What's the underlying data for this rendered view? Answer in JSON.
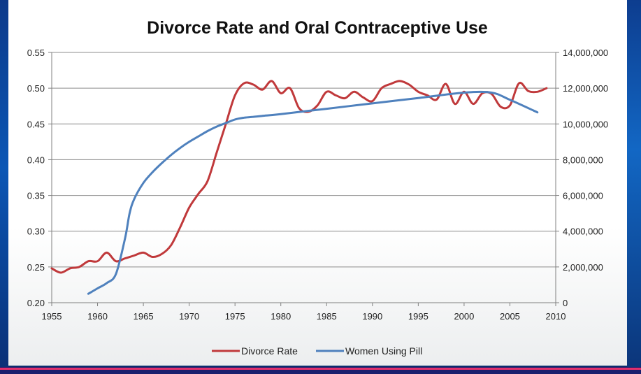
{
  "colors": {
    "divorce": "#c0393b",
    "pill": "#4f81bd",
    "grid": "#8c8c8c",
    "axis": "#808080",
    "frame_accent": "#e0306c"
  },
  "chart_data": {
    "type": "line",
    "title": "Divorce Rate and Oral Contraceptive Use",
    "xlim": [
      1955,
      2010
    ],
    "x_ticks": [
      1955,
      1960,
      1965,
      1970,
      1975,
      1980,
      1985,
      1990,
      1995,
      2000,
      2005,
      2010
    ],
    "x_tick_labels": [
      "1955",
      "1960",
      "1965",
      "1970",
      "1975",
      "1980",
      "1985",
      "1990",
      "1995",
      "2000",
      "2005",
      "2010"
    ],
    "y_left": {
      "lim": [
        0.2,
        0.55
      ],
      "ticks": [
        0.2,
        0.25,
        0.3,
        0.35,
        0.4,
        0.45,
        0.5,
        0.55
      ],
      "tick_labels": [
        "0.20",
        "0.25",
        "0.30",
        "0.35",
        "0.40",
        "0.45",
        "0.50",
        "0.55"
      ]
    },
    "y_right": {
      "lim": [
        0,
        14000000
      ],
      "ticks": [
        0,
        2000000,
        4000000,
        6000000,
        8000000,
        10000000,
        12000000,
        14000000
      ],
      "tick_labels": [
        "0",
        "2,000,000",
        "4,000,000",
        "6,000,000",
        "8,000,000",
        "10,000,000",
        "12,000,000",
        "14,000,000"
      ]
    },
    "grid": true,
    "legend_position": "bottom",
    "series": [
      {
        "name": "Divorce Rate",
        "axis": "left",
        "x": [
          1955,
          1956,
          1957,
          1958,
          1959,
          1960,
          1961,
          1962,
          1963,
          1964,
          1965,
          1966,
          1967,
          1968,
          1969,
          1970,
          1971,
          1972,
          1973,
          1974,
          1975,
          1976,
          1977,
          1978,
          1979,
          1980,
          1981,
          1982,
          1983,
          1984,
          1985,
          1986,
          1987,
          1988,
          1989,
          1990,
          1991,
          1992,
          1993,
          1994,
          1995,
          1996,
          1997,
          1998,
          1999,
          2000,
          2001,
          2002,
          2003,
          2004,
          2005,
          2006,
          2007,
          2008,
          2009
        ],
        "values": [
          0.248,
          0.242,
          0.248,
          0.25,
          0.258,
          0.258,
          0.27,
          0.258,
          0.262,
          0.266,
          0.27,
          0.264,
          0.268,
          0.28,
          0.305,
          0.333,
          0.352,
          0.37,
          0.41,
          0.45,
          0.49,
          0.507,
          0.505,
          0.498,
          0.51,
          0.493,
          0.5,
          0.472,
          0.467,
          0.476,
          0.495,
          0.49,
          0.486,
          0.495,
          0.487,
          0.482,
          0.5,
          0.506,
          0.51,
          0.505,
          0.495,
          0.49,
          0.484,
          0.506,
          0.478,
          0.495,
          0.478,
          0.493,
          0.492,
          0.474,
          0.476,
          0.507,
          0.496,
          0.495,
          0.5
        ]
      },
      {
        "name": "Women Using Pill",
        "axis": "right",
        "x": [
          1959,
          1960,
          1961,
          1962,
          1963,
          1963.5,
          1964,
          1965,
          1966,
          1967,
          1968,
          1969,
          1970,
          1971,
          1972,
          1973,
          1974,
          1975,
          1976,
          1977,
          1978,
          1980,
          1985,
          1990,
          1995,
          2000,
          2003,
          2005,
          2008
        ],
        "values": [
          500000,
          800000,
          1100000,
          1600000,
          3600000,
          5000000,
          5800000,
          6700000,
          7300000,
          7800000,
          8250000,
          8650000,
          9000000,
          9300000,
          9600000,
          9850000,
          10050000,
          10250000,
          10350000,
          10400000,
          10450000,
          10550000,
          10850000,
          11150000,
          11450000,
          11750000,
          11750000,
          11350000,
          10650000
        ]
      }
    ]
  }
}
